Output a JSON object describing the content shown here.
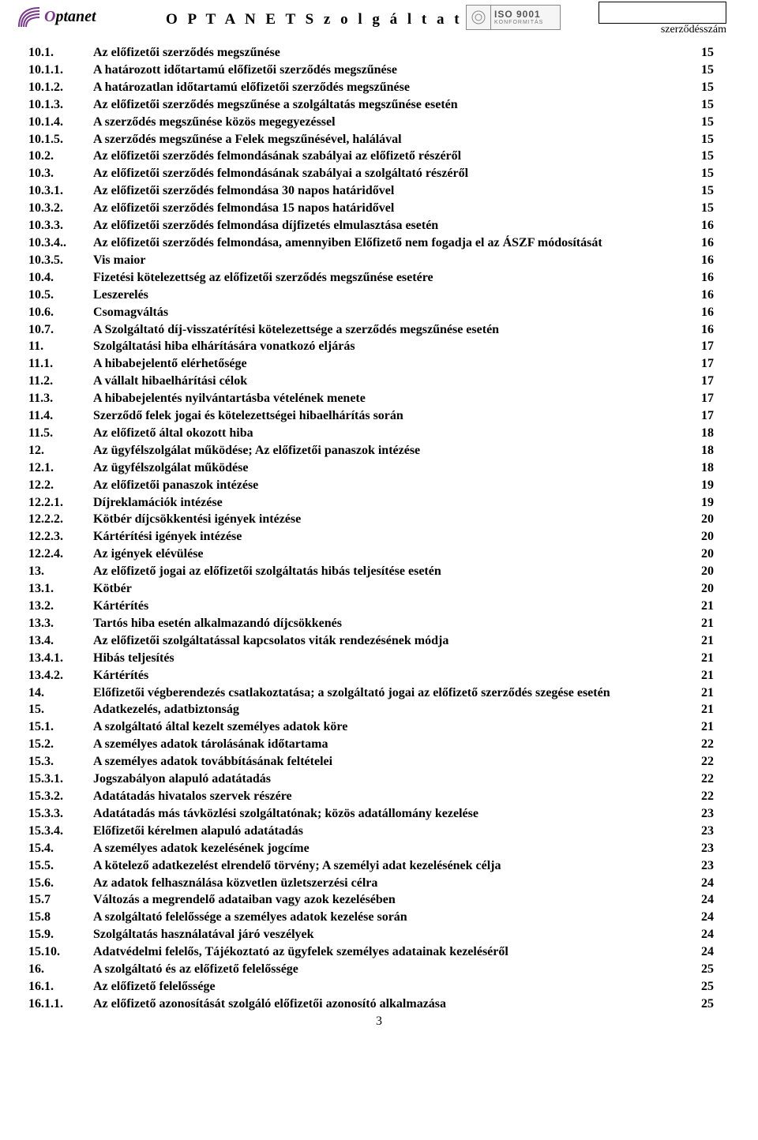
{
  "header": {
    "logo_text_head": "O",
    "logo_text_rest": "ptanet",
    "title": "O P T A N E T   S z o l g á l t a t ó   K f t.",
    "iso_line1": "ISO 9001",
    "iso_line2": "KONFORMITÁS",
    "szerz_label": "szerződésszám"
  },
  "toc": [
    {
      "num": "10.1.",
      "title": "Az előfizetői szerződés megszűnése",
      "page": "15"
    },
    {
      "num": "10.1.1.",
      "title": "A határozott időtartamú előfizetői szerződés megszűnése",
      "page": "15"
    },
    {
      "num": "10.1.2.",
      "title": "A határozatlan időtartamú előfizetői szerződés megszűnése",
      "page": "15"
    },
    {
      "num": "10.1.3.",
      "title": "Az előfizetői szerződés megszűnése a szolgáltatás megszűnése esetén",
      "page": "15"
    },
    {
      "num": "10.1.4.",
      "title": "A szerződés megszűnése közös megegyezéssel",
      "page": "15"
    },
    {
      "num": "10.1.5.",
      "title": "A szerződés megszűnése a Felek megszűnésével, halálával",
      "page": "15"
    },
    {
      "num": "10.2.",
      "title": "Az előfizetői szerződés felmondásának szabályai az előfizető részéről",
      "page": "15"
    },
    {
      "num": "10.3.",
      "title": "Az előfizetői szerződés felmondásának szabályai a szolgáltató részéről",
      "page": "15"
    },
    {
      "num": "10.3.1.",
      "title": " Az előfizetői szerződés felmondása 30 napos határidővel",
      "page": "15"
    },
    {
      "num": "10.3.2.",
      "title": "Az előfizetői szerződés felmondása 15 napos határidővel",
      "page": "15"
    },
    {
      "num": "10.3.3.",
      "title": "Az előfizetői szerződés felmondása díjfizetés elmulasztása esetén",
      "page": "16"
    },
    {
      "num": "10.3.4..",
      "title": "Az előfizetői szerződés felmondása, amennyiben Előfizető nem fogadja el az ÁSZF módosítását",
      "page": "16"
    },
    {
      "num": "10.3.5.",
      "title": "Vis maior",
      "page": "16"
    },
    {
      "num": "10.4.",
      "title": "Fizetési kötelezettség az előfizetői szerződés megszűnése esetére",
      "page": "16"
    },
    {
      "num": "10.5.",
      "title": "Leszerelés",
      "page": "16"
    },
    {
      "num": "10.6.",
      "title": "Csomagváltás",
      "page": "16"
    },
    {
      "num": "10.7.",
      "title": "A Szolgáltató díj-visszatérítési kötelezettsége a szerződés megszűnése esetén",
      "page": "16"
    },
    {
      "num": "11.",
      "title": "Szolgáltatási hiba elhárítására vonatkozó eljárás",
      "page": "17"
    },
    {
      "num": "11.1.",
      "title": "A hibabejelentő elérhetősége",
      "page": "17"
    },
    {
      "num": "11.2.",
      "title": "A vállalt hibaelhárítási célok",
      "page": "17"
    },
    {
      "num": "11.3.",
      "title": "A hibabejelentés nyilvántartásba vételének menete",
      "page": "17"
    },
    {
      "num": "11.4.",
      "title": "Szerződő felek jogai és kötelezettségei hibaelhárítás során",
      "page": "17"
    },
    {
      "num": "11.5.",
      "title": "Az előfizető által okozott hiba",
      "page": "18"
    },
    {
      "num": "12.",
      "title": "Az ügyfélszolgálat működése; Az előfizetői panaszok intézése",
      "page": "18"
    },
    {
      "num": "12.1.",
      "title": "Az ügyfélszolgálat működése",
      "page": "18"
    },
    {
      "num": "12.2.",
      "title": "Az előfizetői panaszok intézése",
      "page": "19"
    },
    {
      "num": "12.2.1.",
      "title": "Díjreklamációk intézése",
      "page": "19"
    },
    {
      "num": "12.2.2.",
      "title": "Kötbér díjcsökkentési igények intézése",
      "page": "20"
    },
    {
      "num": "12.2.3.",
      "title": "Kártérítési igények intézése",
      "page": "20"
    },
    {
      "num": "12.2.4.",
      "title": "Az igények elévülése",
      "page": "20"
    },
    {
      "num": "13.",
      "title": "Az előfizető jogai az előfizetői szolgáltatás hibás teljesítése esetén",
      "page": "20"
    },
    {
      "num": "13.1.",
      "title": "Kötbér",
      "page": "20"
    },
    {
      "num": "13.2.",
      "title": "Kártérítés",
      "page": "21"
    },
    {
      "num": "13.3.",
      "title": "Tartós hiba esetén alkalmazandó díjcsökkenés",
      "page": "21"
    },
    {
      "num": "13.4.",
      "title": "Az előfizetői szolgáltatással kapcsolatos viták rendezésének módja",
      "page": "21"
    },
    {
      "num": "13.4.1.",
      "title": "Hibás teljesítés",
      "page": "21"
    },
    {
      "num": "13.4.2.",
      "title": "Kártérítés",
      "page": "21"
    },
    {
      "num": "14.",
      "title": "Előfizetői végberendezés csatlakoztatása; a szolgáltató jogai az előfizető szerződés szegése esetén",
      "page": "21"
    },
    {
      "num": "15.",
      "title": "Adatkezelés, adatbiztonság",
      "page": "21"
    },
    {
      "num": "15.1.",
      "title": "A szolgáltató által kezelt személyes adatok köre",
      "page": "21"
    },
    {
      "num": "15.2.",
      "title": "A személyes adatok tárolásának időtartama",
      "page": "22"
    },
    {
      "num": "15.3.",
      "title": "A személyes adatok továbbításának feltételei",
      "page": "22"
    },
    {
      "num": "15.3.1.",
      "title": "Jogszabályon alapuló adatátadás",
      "page": "22"
    },
    {
      "num": "15.3.2.",
      "title": "Adatátadás hivatalos szervek részére",
      "page": "22"
    },
    {
      "num": "15.3.3.",
      "title": "Adatátadás más távközlési szolgáltatónak; közös adatállomány kezelése",
      "page": "23"
    },
    {
      "num": "15.3.4.",
      "title": "Előfizetői kérelmen alapuló adatátadás",
      "page": "23"
    },
    {
      "num": "15.4.",
      "title": "A személyes adatok kezelésének jogcíme",
      "page": "23"
    },
    {
      "num": "15.5.",
      "title": "A kötelező adatkezelést elrendelő törvény; A személyi adat kezelésének célja",
      "page": "23"
    },
    {
      "num": "15.6.",
      "title": "Az adatok felhasználása közvetlen üzletszerzési célra",
      "page": "24"
    },
    {
      "num": "15.7",
      "title": "Változás a megrendelő adataiban vagy azok kezelésében",
      "page": "24"
    },
    {
      "num": "15.8",
      "title": "A szolgáltató felelőssége a személyes adatok kezelése során",
      "page": "24"
    },
    {
      "num": "15.9.",
      "title": "Szolgáltatás használatával járó veszélyek",
      "page": "24"
    },
    {
      "num": "15.10.",
      "title": "Adatvédelmi felelős, Tájékoztató az ügyfelek személyes adatainak kezeléséről",
      "page": "  24"
    },
    {
      "num": "16.",
      "title": "A szolgáltató és az előfizető felelőssége",
      "page": "25"
    },
    {
      "num": "16.1.",
      "title": "Az előfizető felelőssége",
      "page": "25"
    },
    {
      "num": "16.1.1.",
      "title": "Az előfizető azonosítását szolgáló előfizetői azonosító alkalmazása",
      "page": "25"
    }
  ],
  "page_number": "3",
  "colors": {
    "logo_purple": "#7a3a8a",
    "logo_arc": "#7a3a8a"
  }
}
